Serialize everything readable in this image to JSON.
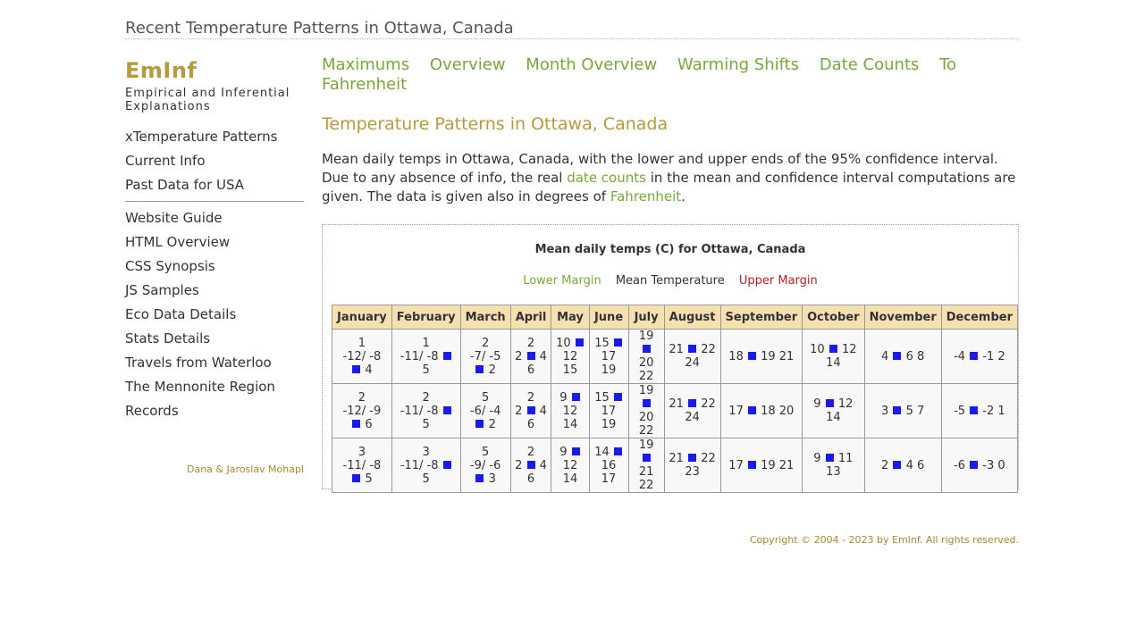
{
  "page_title": "Recent Temperature Patterns in Ottawa, Canada",
  "logo": "EmInf",
  "tagline": "Empirical and Inferential Explanations",
  "sidebar": {
    "group1": [
      "xTemperature Patterns",
      "Current Info",
      "Past Data for USA"
    ],
    "group2": [
      "Website Guide",
      "HTML Overview",
      "CSS Synopsis",
      "JS Samples",
      "Eco Data Details",
      "Stats Details",
      "Travels from Waterloo",
      "The Mennonite Region",
      "Records"
    ],
    "author": "Dana & Jaroslav Mohapl"
  },
  "top_nav": [
    "Maximums",
    "Overview",
    "Month Overview",
    "Warming Shifts",
    "Date Counts",
    "To Fahrenheit"
  ],
  "main": {
    "title": "Temperature Patterns in Ottawa, Canada",
    "intro_before": "Mean daily temps in Ottawa, Canada, with the lower and upper ends of the 95% confidence interval. Due to any absence of info, the real ",
    "intro_link1": "date counts",
    "intro_middle": " in the mean and confidence interval computations are given. The data is given also in degrees of ",
    "intro_link2": "Fahrenheit",
    "intro_end": "."
  },
  "chart_data": {
    "type": "table",
    "title": "Mean daily temps (C) for Ottawa, Canada",
    "legend": [
      "Lower Margin",
      "Mean Temperature",
      "Upper Margin"
    ],
    "months": [
      "January",
      "February",
      "March",
      "April",
      "May",
      "June",
      "July",
      "August",
      "September",
      "October",
      "November",
      "December"
    ],
    "rows": [
      [
        {
          "parts": [
            "1",
            "-12/ -8",
            "■ 4"
          ]
        },
        {
          "parts": [
            "1",
            "-11/ -8 ■",
            "5"
          ]
        },
        {
          "parts": [
            "2",
            "-7/ -5",
            "■ 2"
          ]
        },
        {
          "parts": [
            "2",
            "2 ■ 4",
            "6"
          ]
        },
        {
          "parts": [
            "10 ■",
            "12 15"
          ]
        },
        {
          "parts": [
            "15 ■",
            "17 19"
          ]
        },
        {
          "parts": [
            "19 ■",
            "20 22"
          ]
        },
        {
          "parts": [
            "21 ■ 22",
            "24"
          ]
        },
        {
          "parts": [
            "18 ■ 19 21"
          ]
        },
        {
          "parts": [
            "10 ■ 12",
            "14"
          ]
        },
        {
          "parts": [
            "4 ■ 6 8"
          ]
        },
        {
          "parts": [
            "-4 ■ -1 2"
          ]
        }
      ],
      [
        {
          "parts": [
            "2",
            "-12/ -9",
            "■ 6"
          ]
        },
        {
          "parts": [
            "2",
            "-11/ -8 ■",
            "5"
          ]
        },
        {
          "parts": [
            "5",
            "-6/ -4",
            "■ 2"
          ]
        },
        {
          "parts": [
            "2",
            "2 ■ 4",
            "6"
          ]
        },
        {
          "parts": [
            "9 ■",
            "12 14"
          ]
        },
        {
          "parts": [
            "15 ■",
            "17 19"
          ]
        },
        {
          "parts": [
            "19 ■",
            "20 22"
          ]
        },
        {
          "parts": [
            "21 ■ 22",
            "24"
          ]
        },
        {
          "parts": [
            "17 ■ 18 20"
          ]
        },
        {
          "parts": [
            "9 ■ 12",
            "14"
          ]
        },
        {
          "parts": [
            "3 ■ 5 7"
          ]
        },
        {
          "parts": [
            "-5 ■ -2 1"
          ]
        }
      ],
      [
        {
          "parts": [
            "3",
            "-11/ -8",
            "■ 5"
          ]
        },
        {
          "parts": [
            "3",
            "-11/ -8 ■",
            "5"
          ]
        },
        {
          "parts": [
            "5",
            "-9/ -6",
            "■ 3"
          ]
        },
        {
          "parts": [
            "2",
            "2 ■ 4",
            "6"
          ]
        },
        {
          "parts": [
            "9 ■",
            "12 14"
          ]
        },
        {
          "parts": [
            "14 ■",
            "16 17"
          ]
        },
        {
          "parts": [
            "19 ■",
            "21 22"
          ]
        },
        {
          "parts": [
            "21 ■ 22",
            "23"
          ]
        },
        {
          "parts": [
            "17 ■ 19 21"
          ]
        },
        {
          "parts": [
            "9 ■ 11",
            "13"
          ]
        },
        {
          "parts": [
            "2 ■ 4 6"
          ]
        },
        {
          "parts": [
            "-6 ■ -3 0"
          ]
        }
      ]
    ]
  },
  "footer": "Copyright © 2004 - 2023 by EmInf. All rights reserved."
}
